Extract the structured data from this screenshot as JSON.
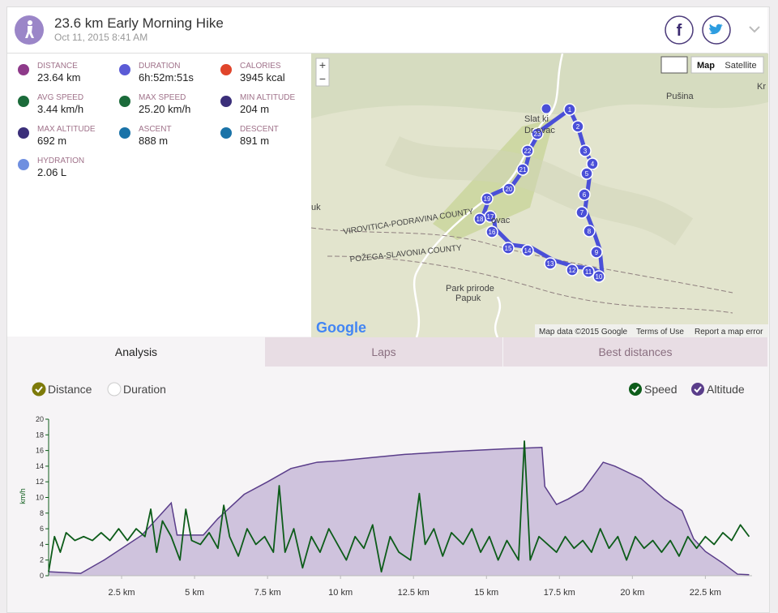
{
  "header": {
    "title": "23.6 km Early Morning Hike",
    "date": "Oct 11, 2015 8:41 AM"
  },
  "stats": [
    {
      "label": "DISTANCE",
      "value": "23.64 km",
      "color": "#8e3a8a"
    },
    {
      "label": "DURATION",
      "value": "6h:52m:51s",
      "color": "#5b5bd6"
    },
    {
      "label": "CALORIES",
      "value": "3945 kcal",
      "color": "#e0452b"
    },
    {
      "label": "AVG SPEED",
      "value": "3.44 km/h",
      "color": "#1b6b3a"
    },
    {
      "label": "MAX SPEED",
      "value": "25.20 km/h",
      "color": "#1b6b3a"
    },
    {
      "label": "MIN ALTITUDE",
      "value": "204 m",
      "color": "#3b2f7a"
    },
    {
      "label": "MAX ALTITUDE",
      "value": "692 m",
      "color": "#3b2f7a"
    },
    {
      "label": "ASCENT",
      "value": "888 m",
      "color": "#1a73a8"
    },
    {
      "label": "DESCENT",
      "value": "891 m",
      "color": "#1a73a8"
    },
    {
      "label": "HYDRATION",
      "value": "2.06 L",
      "color": "#6f8fe0"
    }
  ],
  "map": {
    "zoom_in": "+",
    "zoom_out": "−",
    "types": [
      "Map",
      "Satellite"
    ],
    "places": [
      "Slat ki",
      "Dr ovac",
      "Pušina",
      "Kr",
      "uk",
      "ovac",
      "VIROVITICA-PODRAVINA COUNTY",
      "POŽEGA-SLAVONIA COUNTY",
      "Park prirode",
      "Papuk"
    ],
    "markers": [
      "1",
      "2",
      "3",
      "4",
      "5",
      "6",
      "7",
      "8",
      "9",
      "10",
      "11",
      "12",
      "13",
      "14",
      "15",
      "16",
      "17",
      "18",
      "19",
      "20",
      "21",
      "22",
      "23"
    ],
    "logo": "Google",
    "footer": [
      "Map data ©2015 Google",
      "Terms of Use",
      "Report a map error"
    ]
  },
  "tabs": [
    "Analysis",
    "Laps",
    "Best distances"
  ],
  "toggles": [
    {
      "label": "Distance",
      "checked": true,
      "color": "#7d7a0a"
    },
    {
      "label": "Duration",
      "checked": false,
      "color": "#999999"
    }
  ],
  "chart_data": {
    "type": "line",
    "y_label": "km/h",
    "xlim": [
      0,
      24.1
    ],
    "ylim": [
      0,
      20
    ],
    "y2lim": [
      200,
      800
    ],
    "xticks": [
      {
        "value": 2.5,
        "label": "2.5 km"
      },
      {
        "value": 5,
        "label": "5 km"
      },
      {
        "value": 7.5,
        "label": "7.5 km"
      },
      {
        "value": 10,
        "label": "10 km"
      },
      {
        "value": 12.5,
        "label": "12.5 km"
      },
      {
        "value": 15,
        "label": "15 km"
      },
      {
        "value": 17.5,
        "label": "17.5 km"
      },
      {
        "value": 20,
        "label": "20 km"
      },
      {
        "value": 22.5,
        "label": "22.5 km"
      }
    ],
    "yticks": [
      0,
      2,
      4,
      6,
      8,
      10,
      12,
      14,
      16,
      18,
      20
    ],
    "series": [
      {
        "name": "Speed",
        "color": "#0d5c1a",
        "x": [
          0,
          0.2,
          0.4,
          0.6,
          0.9,
          1.2,
          1.5,
          1.8,
          2.1,
          2.4,
          2.7,
          3.0,
          3.3,
          3.5,
          3.7,
          3.9,
          4.2,
          4.5,
          4.7,
          4.9,
          5.2,
          5.5,
          5.8,
          6.0,
          6.2,
          6.5,
          6.8,
          7.1,
          7.4,
          7.7,
          7.9,
          8.1,
          8.4,
          8.7,
          9.0,
          9.3,
          9.6,
          9.9,
          10.2,
          10.5,
          10.8,
          11.1,
          11.4,
          11.7,
          12.0,
          12.4,
          12.7,
          12.9,
          13.2,
          13.5,
          13.8,
          14.2,
          14.5,
          14.8,
          15.1,
          15.4,
          15.7,
          16.1,
          16.3,
          16.5,
          16.8,
          17.1,
          17.4,
          17.7,
          18.0,
          18.3,
          18.6,
          18.9,
          19.2,
          19.5,
          19.8,
          20.1,
          20.4,
          20.7,
          21.0,
          21.3,
          21.6,
          21.9,
          22.2,
          22.5,
          22.8,
          23.1,
          23.4,
          23.7,
          24.0
        ],
        "values": [
          0.5,
          5,
          3,
          5.5,
          4.5,
          5,
          4.5,
          5.5,
          4.5,
          6,
          4.5,
          6,
          5,
          8.5,
          3,
          7,
          5,
          2,
          8.5,
          4.5,
          4,
          5.5,
          3.5,
          9,
          5,
          2.5,
          6,
          4,
          5,
          3,
          11.5,
          3,
          6,
          1,
          5,
          3,
          6,
          4,
          2,
          5,
          3.5,
          6.5,
          0.5,
          5,
          3,
          2,
          10.5,
          4,
          6,
          2.5,
          5.5,
          4,
          6,
          3,
          5,
          2,
          4.5,
          2,
          17.2,
          2,
          5,
          4,
          3,
          5,
          3.5,
          4.5,
          3,
          6,
          3.5,
          5,
          2,
          5,
          3.5,
          4.5,
          3,
          4.5,
          2.5,
          5,
          3.5,
          5,
          4,
          5.5,
          4.5,
          6.5,
          5
        ]
      },
      {
        "name": "Altitude",
        "color": "#5a3d8a",
        "fill": "#cfc3dd",
        "axis": "y2",
        "x": [
          0,
          1.1,
          1.9,
          3.2,
          4.2,
          4.4,
          5.3,
          5.8,
          6.7,
          7.5,
          8.3,
          9.2,
          10,
          10.8,
          12.2,
          13.9,
          15.6,
          16.9,
          17.0,
          17.4,
          17.8,
          18.3,
          19.0,
          19.4,
          20.3,
          21.1,
          21.7,
          22.1,
          22.5,
          23.1,
          23.6,
          24.0
        ],
        "values": [
          215,
          209,
          260,
          356,
          479,
          356,
          356,
          419,
          512,
          560,
          611,
          635,
          641,
          650,
          665,
          677,
          686,
          692,
          542,
          473,
          494,
          527,
          635,
          620,
          572,
          494,
          449,
          341,
          293,
          248,
          206,
          204
        ]
      }
    ]
  }
}
